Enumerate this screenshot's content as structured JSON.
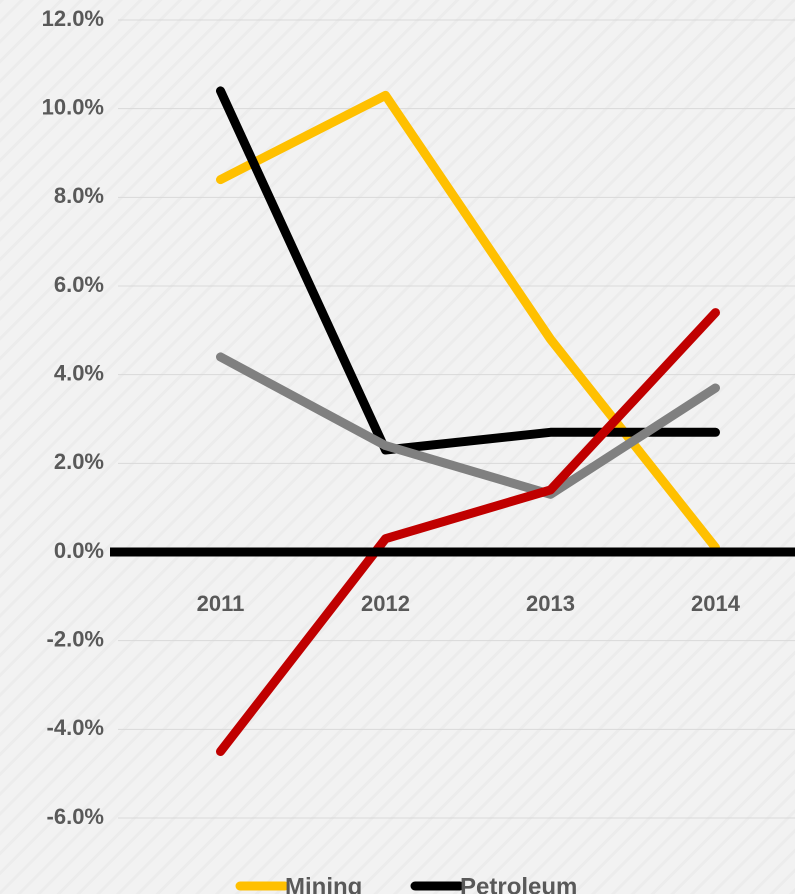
{
  "chart_data": {
    "type": "line",
    "categories": [
      "2011",
      "2012",
      "2013",
      "2014"
    ],
    "series": [
      {
        "name": "Mining",
        "color": "#ffc000",
        "values": [
          8.4,
          10.3,
          4.8,
          0.1
        ]
      },
      {
        "name": "Petroleum",
        "color": "#000000",
        "values": [
          10.4,
          2.3,
          2.7,
          2.7
        ]
      },
      {
        "color": "#808080",
        "values": [
          4.4,
          2.4,
          1.3,
          3.7
        ]
      },
      {
        "color": "#c00000",
        "values": [
          -4.5,
          0.3,
          1.4,
          5.4
        ]
      }
    ],
    "ylim": [
      -6,
      12
    ],
    "yticks": [
      {
        "value": -6,
        "label": "-6.0%"
      },
      {
        "value": -4,
        "label": "-4.0%"
      },
      {
        "value": -2,
        "label": "-2.0%"
      },
      {
        "value": 0,
        "label": "0.0%"
      },
      {
        "value": 2,
        "label": "2.0%"
      },
      {
        "value": 4,
        "label": "4.0%"
      },
      {
        "value": 6,
        "label": "6.0%"
      },
      {
        "value": 8,
        "label": "8.0%"
      },
      {
        "value": 10,
        "label": "10.0%"
      },
      {
        "value": 12,
        "label": "12.0%"
      }
    ],
    "grid": true,
    "legend": "bottom"
  }
}
